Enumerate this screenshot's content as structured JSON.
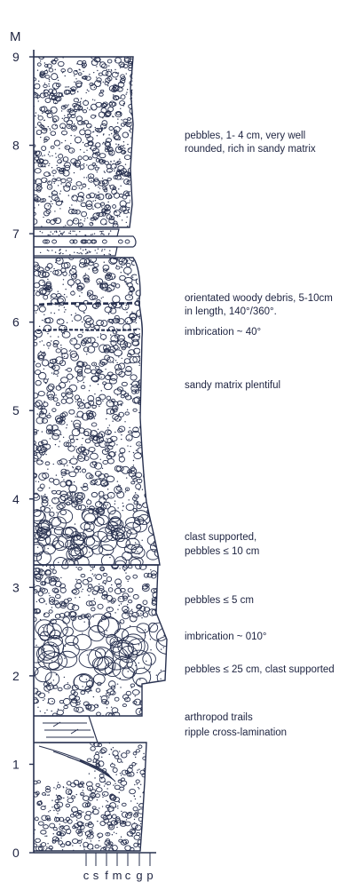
{
  "axis": {
    "unit_label": "M",
    "ticks": [
      "0",
      "1",
      "2",
      "3",
      "4",
      "5",
      "6",
      "7",
      "8",
      "9"
    ],
    "grain_size_labels": [
      "c",
      "s",
      "f",
      "m",
      "c",
      "g",
      "p"
    ]
  },
  "annotations": [
    {
      "id": "a1",
      "lines": [
        "pebbles, 1- 4 cm, very well",
        "rounded, rich in sandy matrix"
      ]
    },
    {
      "id": "a2",
      "lines": [
        "orientated woody debris, 5-10cm",
        "in length, 140°/360°."
      ]
    },
    {
      "id": "a3",
      "lines": [
        "imbrication ~ 40°"
      ]
    },
    {
      "id": "a4",
      "lines": [
        "sandy matrix plentiful"
      ]
    },
    {
      "id": "a5",
      "lines": [
        "clast supported,",
        "pebbles ≤ 10 cm"
      ]
    },
    {
      "id": "a6",
      "lines": [
        "pebbles ≤ 5 cm"
      ]
    },
    {
      "id": "a7",
      "lines": [
        "imbrication ~ 010°"
      ]
    },
    {
      "id": "a8",
      "lines": [
        "pebbles ≤ 25 cm, clast supported"
      ]
    },
    {
      "id": "a9",
      "lines": [
        "arthropod trails",
        "ripple cross-lamination"
      ]
    }
  ],
  "colors": {
    "ink": "#27304f",
    "text": "#1d2340",
    "background": "#ffffff"
  }
}
